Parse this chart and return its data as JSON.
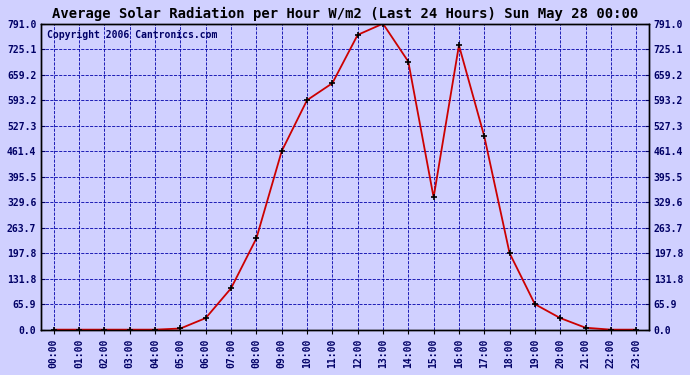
{
  "title": "Average Solar Radiation per Hour W/m2 (Last 24 Hours) Sun May 28 00:00",
  "copyright": "Copyright 2006 Cantronics.com",
  "hours": [
    "00:00",
    "01:00",
    "02:00",
    "03:00",
    "04:00",
    "05:00",
    "06:00",
    "07:00",
    "08:00",
    "09:00",
    "10:00",
    "11:00",
    "12:00",
    "13:00",
    "14:00",
    "15:00",
    "16:00",
    "17:00",
    "18:00",
    "19:00",
    "20:00",
    "21:00",
    "22:00",
    "23:00"
  ],
  "values": [
    0.0,
    0.0,
    0.0,
    0.0,
    0.0,
    3.0,
    30.0,
    107.0,
    236.0,
    461.4,
    593.2,
    637.0,
    762.0,
    791.0,
    693.0,
    342.0,
    735.0,
    500.0,
    197.8,
    65.9,
    30.0,
    5.0,
    0.0,
    0.0
  ],
  "yticks": [
    0.0,
    65.9,
    131.8,
    197.8,
    263.7,
    329.6,
    395.5,
    461.4,
    527.3,
    593.2,
    659.2,
    725.1,
    791.0
  ],
  "ymax": 791.0,
  "line_color": "#cc0000",
  "marker_color": "#000000",
  "bg_color": "#d0d0ff",
  "plot_bg_color": "#d0d0ff",
  "grid_color": "#0000aa",
  "title_color": "#000000",
  "border_color": "#000000",
  "title_fontsize": 10,
  "copyright_fontsize": 7,
  "tick_fontsize": 7,
  "figwidth": 6.9,
  "figheight": 3.75,
  "dpi": 100
}
